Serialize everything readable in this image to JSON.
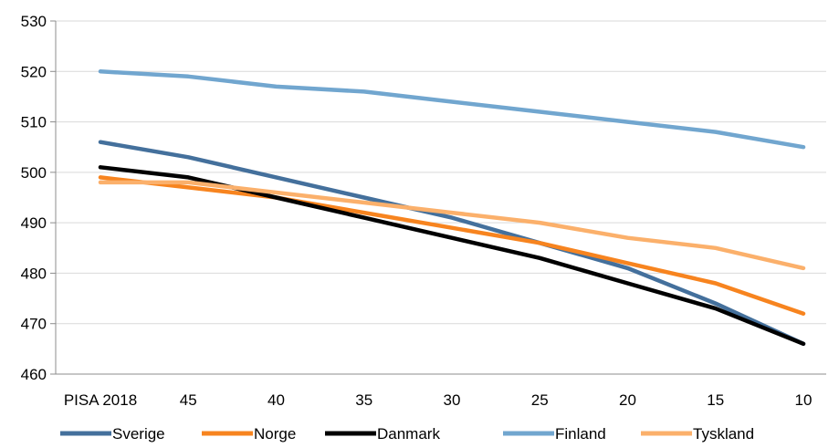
{
  "chart_data": {
    "type": "line",
    "title": "",
    "xlabel": "",
    "ylabel": "",
    "categories": [
      "PISA 2018",
      "45",
      "40",
      "35",
      "30",
      "25",
      "20",
      "15",
      "10"
    ],
    "ylim": [
      460,
      530
    ],
    "yticks": [
      460,
      470,
      480,
      490,
      500,
      510,
      520,
      530
    ],
    "grid": "horizontal",
    "legend_position": "bottom",
    "series": [
      {
        "name": "Sverige",
        "color": "#44709c",
        "values": [
          506,
          503,
          499,
          495,
          491,
          486,
          481,
          474,
          466
        ]
      },
      {
        "name": "Norge",
        "color": "#f7841f",
        "values": [
          499,
          497,
          495,
          492,
          489,
          486,
          482,
          478,
          472
        ]
      },
      {
        "name": "Danmark",
        "color": "#000000",
        "values": [
          501,
          499,
          495,
          491,
          487,
          483,
          478,
          473,
          466
        ]
      },
      {
        "name": "Finland",
        "color": "#71a6cf",
        "values": [
          520,
          519,
          517,
          516,
          514,
          512,
          510,
          508,
          505
        ]
      },
      {
        "name": "Tyskland",
        "color": "#fbb06b",
        "values": [
          498,
          498,
          496,
          494,
          492,
          490,
          487,
          485,
          481
        ]
      }
    ]
  }
}
